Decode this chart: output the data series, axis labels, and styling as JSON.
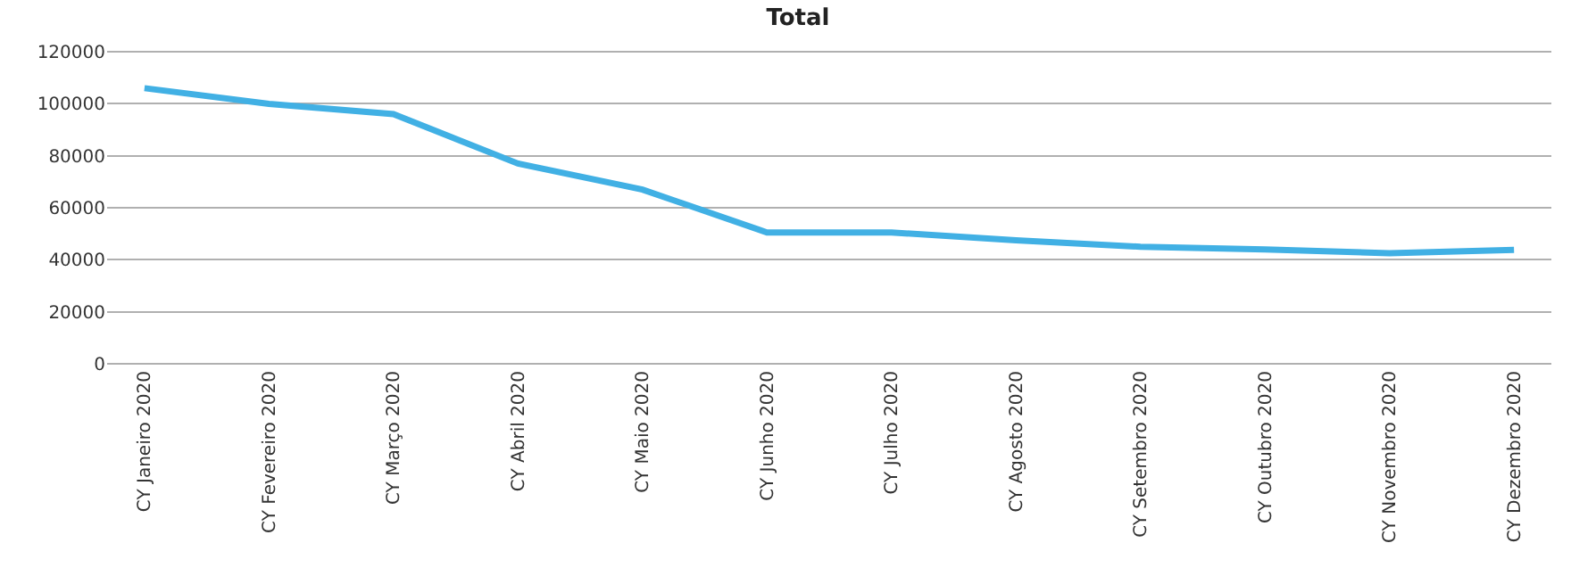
{
  "chart_data": {
    "type": "line",
    "title": "Total",
    "categories": [
      "CY Janeiro 2020",
      "CY Fevereiro 2020",
      "CY Março 2020",
      "CY Abril 2020",
      "CY Maio 2020",
      "CY Junho 2020",
      "CY Julho 2020",
      "CY Agosto 2020",
      "CY Setembro 2020",
      "CY Outubro 2020",
      "CY Novembro 2020",
      "CY Dezembro 2020"
    ],
    "series": [
      {
        "color": "#41b0e4",
        "values": [
          106000,
          100000,
          96000,
          77000,
          67000,
          50500,
          50500,
          47500,
          45000,
          44000,
          42500,
          43800
        ]
      }
    ],
    "ylim": [
      0,
      120000
    ],
    "yticks": [
      0,
      20000,
      40000,
      60000,
      80000,
      100000,
      120000
    ],
    "grid": "y",
    "marker": "none",
    "line_style": "solid"
  }
}
